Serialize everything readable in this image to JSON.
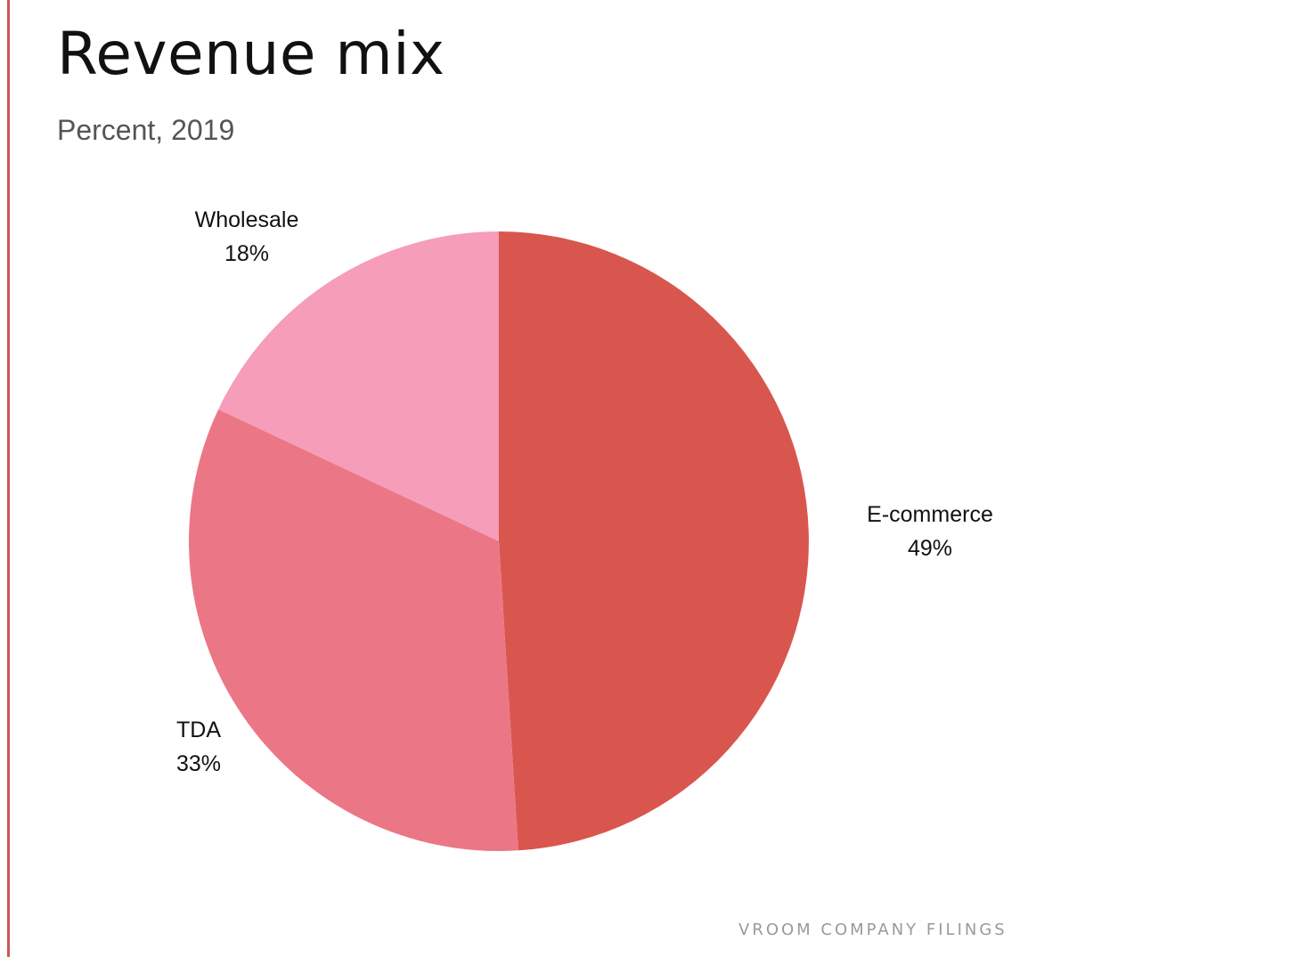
{
  "chart_data": {
    "type": "pie",
    "title": "Revenue mix",
    "subtitle": "Percent, 2019",
    "slices": [
      {
        "label": "E-commerce",
        "value": 49,
        "value_label": "49%",
        "color": "#d9564f"
      },
      {
        "label": "TDA",
        "value": 33,
        "value_label": "33%",
        "color": "#eb7786"
      },
      {
        "label": "Wholesale",
        "value": 18,
        "value_label": "18%",
        "color": "#f59db9"
      }
    ]
  },
  "source": "VROOM COMPANY FILINGS",
  "accent_color": "#c9575a"
}
